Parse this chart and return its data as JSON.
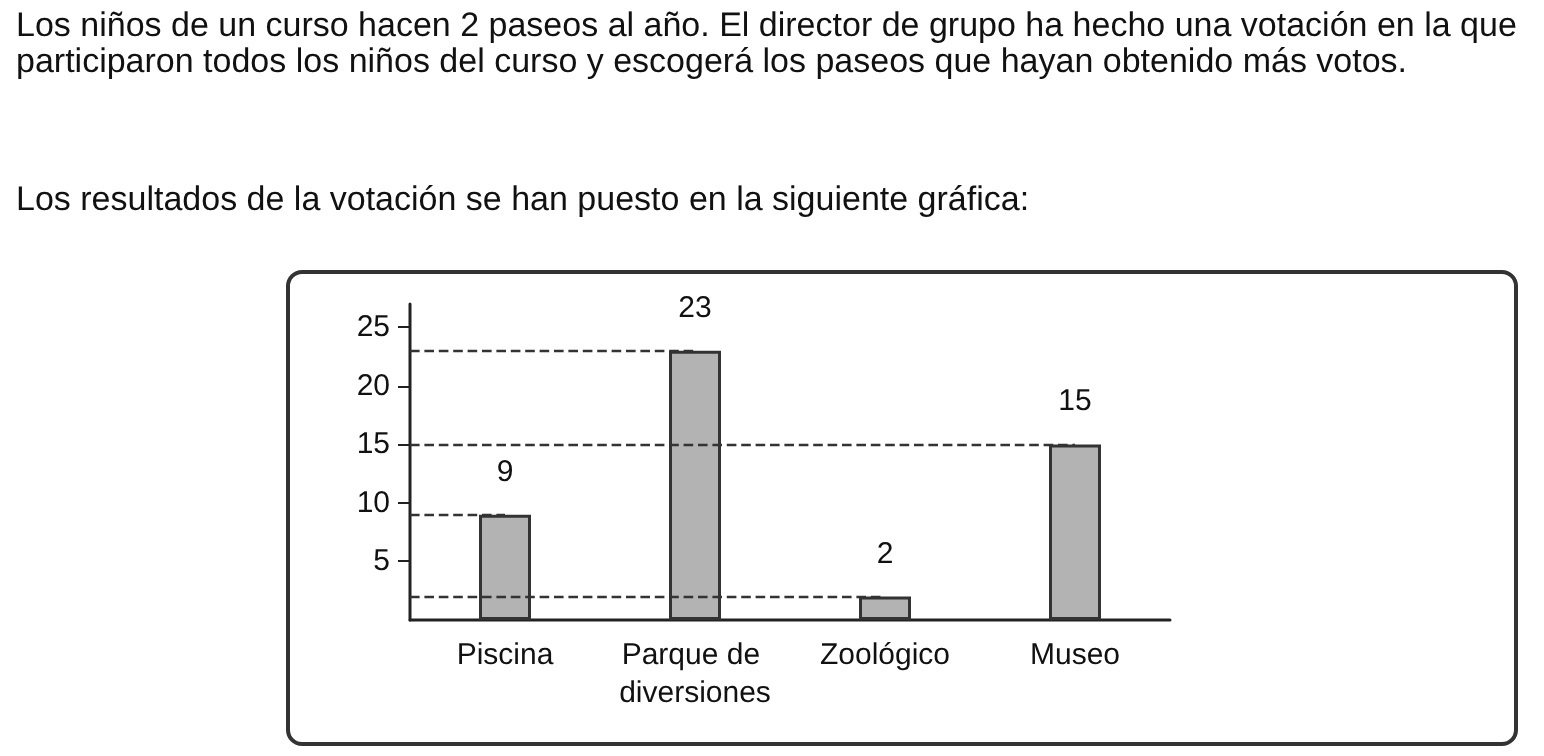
{
  "chart_data": {
    "type": "bar",
    "title": "Los niños de un curso hacen 2 paseos al año. El director de grupo ha hecho una votación en la que participaron todos los niños del curso y escogerá los paseos que hayan obtenido más votos.",
    "subtitle": "Los resultados de la votación se han puesto en la siguiente gráfica:",
    "categories": [
      "Piscina",
      "Parque de diversiones",
      "Zoológico",
      "Museo"
    ],
    "values": [
      9,
      23,
      2,
      15
    ],
    "color": "#b3b3b3",
    "ylim": [
      0,
      27
    ],
    "yticks": [
      5,
      10,
      15,
      20,
      25
    ],
    "data_labels": true,
    "grid": false,
    "ref_lines": [
      {
        "axis": "y",
        "value": 9,
        "line_style": "dashed",
        "color": "#333333"
      },
      {
        "axis": "y",
        "value": 23,
        "line_style": "dashed",
        "color": "#333333"
      },
      {
        "axis": "y",
        "value": 2,
        "line_style": "dashed",
        "color": "#333333"
      },
      {
        "axis": "y",
        "value": 15,
        "line_style": "dashed",
        "color": "#333333"
      }
    ]
  }
}
